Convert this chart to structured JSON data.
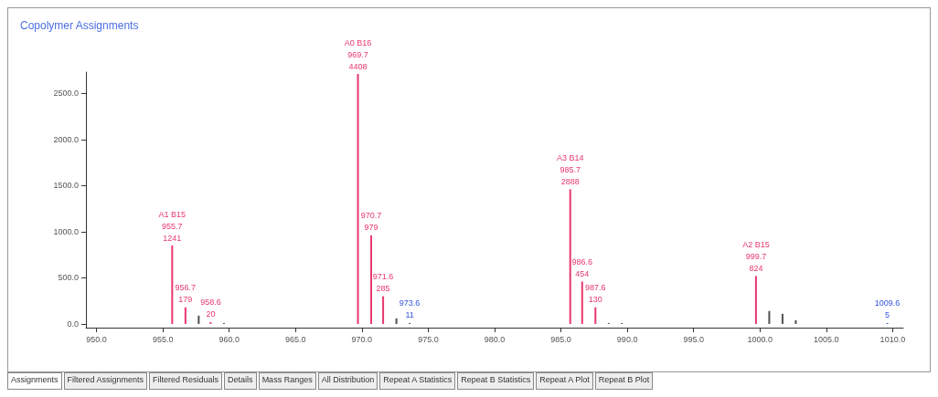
{
  "chart_data": {
    "type": "bar",
    "title": "Copolymer Assignments",
    "x": [
      955.7,
      956.7,
      957.7,
      958.6,
      959.6,
      969.7,
      970.7,
      971.6,
      972.6,
      973.6,
      985.7,
      986.6,
      987.6,
      988.6,
      989.6,
      999.7,
      1000.7,
      1001.7,
      1002.7,
      1009.6
    ],
    "values": [
      850,
      180,
      90,
      20,
      10,
      2710,
      960,
      300,
      60,
      10,
      1460,
      460,
      180,
      10,
      10,
      520,
      140,
      110,
      40,
      10
    ],
    "colors": [
      "#e8386d",
      "#e8386d",
      "#505050",
      "#e8386d",
      "#505050",
      "#e8386d",
      "#e8386d",
      "#e8386d",
      "#505050",
      "#505050",
      "#e8386d",
      "#e8386d",
      "#e8386d",
      "#505050",
      "#505050",
      "#e8386d",
      "#505050",
      "#505050",
      "#505050",
      "#3355dd"
    ],
    "xlim": [
      949.2,
      1010.8
    ],
    "xticks": [
      {
        "value": 950,
        "label": "950.0"
      },
      {
        "value": 955,
        "label": "955.0"
      },
      {
        "value": 960,
        "label": "960.0"
      },
      {
        "value": 965,
        "label": "965.0"
      },
      {
        "value": 970,
        "label": "970.0"
      },
      {
        "value": 975,
        "label": "975.0"
      },
      {
        "value": 980,
        "label": "980.0"
      },
      {
        "value": 985,
        "label": "985.0"
      },
      {
        "value": 990,
        "label": "990.0"
      },
      {
        "value": 995,
        "label": "995.0"
      },
      {
        "value": 1000,
        "label": "1000.0"
      },
      {
        "value": 1005,
        "label": "1005.0"
      },
      {
        "value": 1010,
        "label": "1010.0"
      }
    ],
    "ylim": [
      -40,
      2730
    ],
    "yticks": [
      {
        "value": 0,
        "label": "0.0"
      },
      {
        "value": 500,
        "label": "500.0"
      },
      {
        "value": 1000,
        "label": "1000.0"
      },
      {
        "value": 1500,
        "label": "1500.0"
      },
      {
        "value": 2000,
        "label": "2000.0"
      },
      {
        "value": 2500,
        "label": "2500.0"
      }
    ],
    "grid": false,
    "annotations": [
      {
        "text": "A1 B15\n955.7\n1241",
        "x": 955.7,
        "y": 850
      },
      {
        "text": "956.7\n179",
        "x": 956.7,
        "y": 180
      },
      {
        "text": "958.6\n20",
        "x": 958.6,
        "y": 20
      },
      {
        "text": "A0 B16\n969.7\n4408",
        "x": 969.7,
        "y": 2710
      },
      {
        "text": "970.7\n979",
        "x": 970.7,
        "y": 960
      },
      {
        "text": "971.6\n285",
        "x": 971.6,
        "y": 300
      },
      {
        "text": "973.6\n11",
        "x": 973.6,
        "y": 10
      },
      {
        "text": "A3 B14\n985.7\n2888",
        "x": 985.7,
        "y": 1460
      },
      {
        "text": "986.6\n454",
        "x": 986.6,
        "y": 460
      },
      {
        "text": "987.6\n130",
        "x": 987.6,
        "y": 180
      },
      {
        "text": "A2 B15\n999.7\n824",
        "x": 999.7,
        "y": 520
      },
      {
        "text": "1009.6\n5",
        "x": 1009.6,
        "y": 10
      },
      "Assignments",
      "Filtered Assignments",
      "Filtered Residuals",
      "Details",
      "Mass Ranges",
      "All Distribution",
      "Repeat A Statistics",
      "Repeat B Statistics",
      "Repeat A Plot",
      "Repeat B Plot"
    ]
  }
}
